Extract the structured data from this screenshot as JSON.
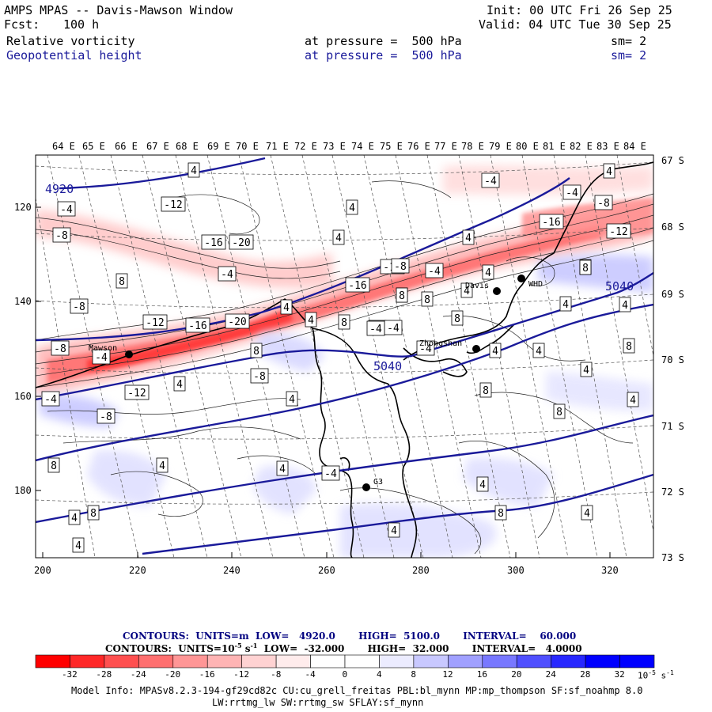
{
  "header": {
    "title": "AMPS MPAS -- Davis-Mawson Window",
    "fcst_label": "Fcst:",
    "fcst_value": "100 h",
    "init": "Init: 00 UTC Fri 26 Sep 25",
    "valid": "Valid: 04 UTC Tue 30 Sep 25",
    "field1": "Relative vorticity",
    "field1_level": "at pressure =  500 hPa",
    "field1_sm": "sm= 2",
    "field2": "Geopotential height",
    "field2_level": "at pressure =  500 hPa",
    "field2_sm": "sm= 2"
  },
  "axes": {
    "top_lon": [
      "64 E",
      "65 E",
      "66 E",
      "67 E",
      "68 E",
      "69 E",
      "70 E",
      "71 E",
      "72 E",
      "73 E",
      "74 E",
      "75 E",
      "76 E",
      "77 E",
      "78 E",
      "79 E",
      "80 E",
      "81 E",
      "82 E",
      "83 E",
      "84 E"
    ],
    "right_lat": [
      "67 S",
      "68 S",
      "69 S",
      "70 S",
      "71 S",
      "72 S",
      "73 S"
    ],
    "left_y": [
      "120",
      "140",
      "160",
      "180"
    ],
    "bottom_x": [
      "200",
      "220",
      "240",
      "260",
      "280",
      "300",
      "320"
    ]
  },
  "stations": [
    {
      "name": "Mawson"
    },
    {
      "name": "Davis"
    },
    {
      "name": "WHD"
    },
    {
      "name": "Zhongshan"
    },
    {
      "name": "G3"
    }
  ],
  "height_labels": [
    "4920",
    "5040",
    "5040"
  ],
  "vort_labels": [
    "4",
    "-4",
    "-8",
    "-12",
    "-16",
    "-20",
    "8",
    "-4",
    "4",
    "-8",
    "-12",
    "-16",
    "8",
    "4",
    "-4",
    "-8",
    "-12",
    "4",
    "8",
    "-4",
    "4",
    "8",
    "4",
    "-4",
    "4",
    "8",
    "4",
    "8",
    "4",
    "4",
    "8",
    "-8",
    "-4",
    "4",
    "-4",
    "-8",
    "-16",
    "-12",
    "4",
    "8",
    "4",
    "-4",
    "8",
    "4",
    "8",
    "-8",
    "4",
    "4",
    "8",
    "4",
    "4",
    "4",
    "8",
    "8",
    "4",
    "-4",
    "4",
    "-12",
    "-16",
    "-20",
    "4",
    "-4",
    "-8",
    "-4",
    "8",
    "-4",
    "4",
    "8",
    "4",
    "8"
  ],
  "contour_info": {
    "line1": "CONTOURS:  UNITS=m  LOW=   4920.0       HIGH=  5100.0       INTERVAL=    60.000",
    "line2": "CONTOURS:  UNITS=10",
    "line2_exp": "-5",
    "line2_unit": " s",
    "line2_exp2": "-1",
    "line2_rest": "  LOW=  -32.000       HIGH=  32.000       INTERVAL=   4.0000"
  },
  "colorbar": {
    "ticks": [
      "-32",
      "-28",
      "-24",
      "-20",
      "-16",
      "-12",
      "-8",
      "-4",
      "0",
      "4",
      "8",
      "12",
      "16",
      "20",
      "24",
      "28",
      "32"
    ],
    "unit": "10",
    "unit_exp": "-5",
    "unit_s": " s",
    "unit_exp2": "-1",
    "colors": [
      "#ff0000",
      "#ff2828",
      "#ff5050",
      "#ff7070",
      "#ff9696",
      "#ffb4b4",
      "#ffd2d2",
      "#ffecec",
      "#ffffff",
      "#ffffff",
      "#ececff",
      "#c8c8ff",
      "#a0a0ff",
      "#7878ff",
      "#5050ff",
      "#2828ff",
      "#0000ff"
    ]
  },
  "model_info": {
    "line1": "Model Info: MPASv8.2.3-194-gf29cd82c CU:cu_grell_freitas PBL:bl_mynn MP:mp_thompson SF:sf_noahmp 8.0",
    "line2": "LW:rrtmg_lw SW:rrtmg_sw SFLAY:sf_mynn"
  },
  "colors": {
    "height_line": "#1a1a9a",
    "coast": "#000000",
    "grid": "#555555"
  }
}
